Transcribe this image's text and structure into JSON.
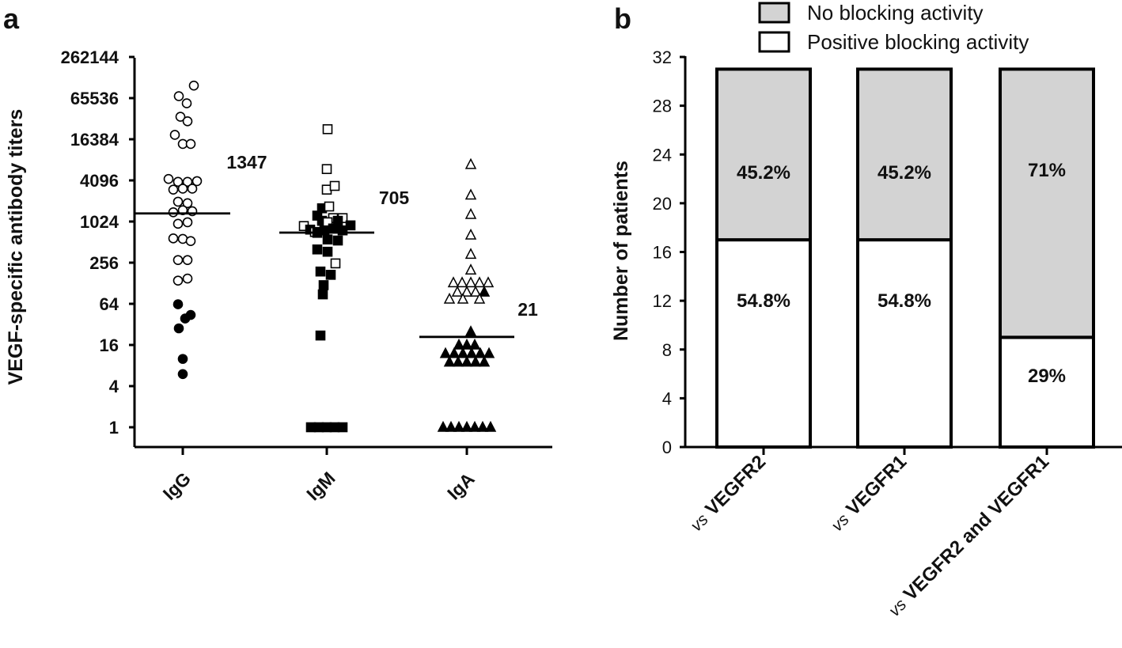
{
  "chart_data": [
    {
      "panel_label": "a",
      "type": "scatter",
      "scale": "log2",
      "ylabel": "VEGF-specific antibody titers",
      "y_ticks": [
        "262144",
        "65536",
        "16384",
        "4096",
        "1024",
        "256",
        "64",
        "16",
        "4",
        "1"
      ],
      "y_tick_values": [
        262144,
        65536,
        16384,
        4096,
        1024,
        256,
        64,
        16,
        4,
        1
      ],
      "ylim": [
        1,
        262144
      ],
      "categories": [
        "IgG",
        "IgM",
        "IgA"
      ],
      "series": [
        {
          "name": "IgG",
          "marker": "circle",
          "median_label": "1347",
          "median": 1347,
          "points": [
            {
              "x": 0.14,
              "y": 100000,
              "filled": false
            },
            {
              "x": -0.05,
              "y": 70000,
              "filled": false
            },
            {
              "x": 0.05,
              "y": 55000,
              "filled": false
            },
            {
              "x": -0.03,
              "y": 35000,
              "filled": false
            },
            {
              "x": 0.06,
              "y": 30000,
              "filled": false
            },
            {
              "x": -0.1,
              "y": 19000,
              "filled": false
            },
            {
              "x": 0.0,
              "y": 14000,
              "filled": false
            },
            {
              "x": 0.1,
              "y": 14000,
              "filled": false
            },
            {
              "x": -0.18,
              "y": 4300,
              "filled": false
            },
            {
              "x": -0.06,
              "y": 3900,
              "filled": false
            },
            {
              "x": 0.06,
              "y": 3900,
              "filled": false
            },
            {
              "x": 0.18,
              "y": 4000,
              "filled": false
            },
            {
              "x": -0.12,
              "y": 3000,
              "filled": false
            },
            {
              "x": 0.0,
              "y": 3100,
              "filled": false
            },
            {
              "x": 0.12,
              "y": 3100,
              "filled": false
            },
            {
              "x": -0.06,
              "y": 2000,
              "filled": false
            },
            {
              "x": 0.06,
              "y": 1900,
              "filled": false
            },
            {
              "x": -0.12,
              "y": 1400,
              "filled": false
            },
            {
              "x": 0.0,
              "y": 1500,
              "filled": false
            },
            {
              "x": 0.12,
              "y": 1450,
              "filled": false
            },
            {
              "x": -0.06,
              "y": 950,
              "filled": false
            },
            {
              "x": 0.06,
              "y": 1000,
              "filled": false
            },
            {
              "x": -0.12,
              "y": 580,
              "filled": false
            },
            {
              "x": 0.0,
              "y": 570,
              "filled": false
            },
            {
              "x": 0.1,
              "y": 530,
              "filled": false
            },
            {
              "x": -0.06,
              "y": 280,
              "filled": false
            },
            {
              "x": 0.06,
              "y": 280,
              "filled": false
            },
            {
              "x": -0.06,
              "y": 140,
              "filled": false
            },
            {
              "x": 0.06,
              "y": 150,
              "filled": false
            },
            {
              "x": -0.06,
              "y": 63,
              "filled": true
            },
            {
              "x": 0.1,
              "y": 44,
              "filled": true
            },
            {
              "x": 0.03,
              "y": 39,
              "filled": true
            },
            {
              "x": -0.05,
              "y": 28,
              "filled": true
            },
            {
              "x": 0.0,
              "y": 10,
              "filled": true
            },
            {
              "x": 0.0,
              "y": 6,
              "filled": true
            }
          ]
        },
        {
          "name": "IgM",
          "marker": "square",
          "median_label": "705",
          "median": 705,
          "points": [
            {
              "x": 0.01,
              "y": 23000,
              "filled": false
            },
            {
              "x": 0.0,
              "y": 6000,
              "filled": false
            },
            {
              "x": 0.0,
              "y": 3000,
              "filled": false
            },
            {
              "x": 0.1,
              "y": 3400,
              "filled": false
            },
            {
              "x": -0.06,
              "y": 1600,
              "filled": true
            },
            {
              "x": 0.03,
              "y": 1700,
              "filled": false
            },
            {
              "x": -0.12,
              "y": 1250,
              "filled": true
            },
            {
              "x": 0.08,
              "y": 1150,
              "filled": false
            },
            {
              "x": 0.2,
              "y": 1150,
              "filled": false
            },
            {
              "x": -0.06,
              "y": 1050,
              "filled": true
            },
            {
              "x": 0.01,
              "y": 1000,
              "filled": false
            },
            {
              "x": 0.14,
              "y": 1050,
              "filled": true
            },
            {
              "x": -0.29,
              "y": 880,
              "filled": false
            },
            {
              "x": -0.21,
              "y": 780,
              "filled": true
            },
            {
              "x": -0.15,
              "y": 720,
              "filled": false
            },
            {
              "x": -0.12,
              "y": 700,
              "filled": true
            },
            {
              "x": -0.03,
              "y": 760,
              "filled": true
            },
            {
              "x": 0.08,
              "y": 810,
              "filled": true
            },
            {
              "x": 0.2,
              "y": 760,
              "filled": true
            },
            {
              "x": 0.3,
              "y": 900,
              "filled": true
            },
            {
              "x": 0.01,
              "y": 560,
              "filled": true
            },
            {
              "x": 0.14,
              "y": 540,
              "filled": true
            },
            {
              "x": -0.12,
              "y": 400,
              "filled": true
            },
            {
              "x": 0.01,
              "y": 370,
              "filled": true
            },
            {
              "x": 0.11,
              "y": 250,
              "filled": false
            },
            {
              "x": -0.08,
              "y": 190,
              "filled": true
            },
            {
              "x": 0.05,
              "y": 170,
              "filled": true
            },
            {
              "x": -0.04,
              "y": 120,
              "filled": true
            },
            {
              "x": -0.05,
              "y": 88,
              "filled": true
            },
            {
              "x": -0.08,
              "y": 22,
              "filled": true
            },
            {
              "x": -0.2,
              "y": 1,
              "filled": true
            },
            {
              "x": -0.1,
              "y": 1,
              "filled": true
            },
            {
              "x": 0.0,
              "y": 1,
              "filled": true
            },
            {
              "x": 0.1,
              "y": 1,
              "filled": true
            },
            {
              "x": 0.2,
              "y": 1,
              "filled": true
            }
          ]
        },
        {
          "name": "IgA",
          "marker": "triangle",
          "median_label": "21",
          "median": 21,
          "points": [
            {
              "x": 0.05,
              "y": 7000,
              "filled": false
            },
            {
              "x": 0.05,
              "y": 2500,
              "filled": false
            },
            {
              "x": 0.05,
              "y": 1300,
              "filled": false
            },
            {
              "x": 0.05,
              "y": 650,
              "filled": false
            },
            {
              "x": 0.05,
              "y": 340,
              "filled": false
            },
            {
              "x": 0.05,
              "y": 200,
              "filled": false
            },
            {
              "x": -0.17,
              "y": 130,
              "filled": false
            },
            {
              "x": -0.06,
              "y": 130,
              "filled": false
            },
            {
              "x": 0.05,
              "y": 130,
              "filled": false
            },
            {
              "x": 0.16,
              "y": 130,
              "filled": false
            },
            {
              "x": 0.27,
              "y": 130,
              "filled": false
            },
            {
              "x": -0.12,
              "y": 95,
              "filled": false
            },
            {
              "x": 0.0,
              "y": 95,
              "filled": false
            },
            {
              "x": 0.11,
              "y": 95,
              "filled": false
            },
            {
              "x": 0.22,
              "y": 95,
              "filled": true
            },
            {
              "x": -0.22,
              "y": 75,
              "filled": false
            },
            {
              "x": -0.05,
              "y": 75,
              "filled": false
            },
            {
              "x": 0.16,
              "y": 75,
              "filled": false
            },
            {
              "x": 0.05,
              "y": 25,
              "filled": true
            },
            {
              "x": -0.1,
              "y": 16,
              "filled": true
            },
            {
              "x": 0.0,
              "y": 16,
              "filled": true
            },
            {
              "x": 0.1,
              "y": 16,
              "filled": true
            },
            {
              "x": -0.27,
              "y": 12,
              "filled": true
            },
            {
              "x": -0.16,
              "y": 12,
              "filled": true
            },
            {
              "x": -0.05,
              "y": 12,
              "filled": true
            },
            {
              "x": 0.06,
              "y": 12,
              "filled": true
            },
            {
              "x": 0.17,
              "y": 12,
              "filled": true
            },
            {
              "x": 0.28,
              "y": 12,
              "filled": true
            },
            {
              "x": -0.22,
              "y": 9,
              "filled": true
            },
            {
              "x": -0.11,
              "y": 9,
              "filled": true
            },
            {
              "x": 0.0,
              "y": 9,
              "filled": true
            },
            {
              "x": 0.11,
              "y": 9,
              "filled": true
            },
            {
              "x": 0.22,
              "y": 9,
              "filled": true
            },
            {
              "x": -0.3,
              "y": 1,
              "filled": true
            },
            {
              "x": -0.2,
              "y": 1,
              "filled": true
            },
            {
              "x": -0.1,
              "y": 1,
              "filled": true
            },
            {
              "x": 0.0,
              "y": 1,
              "filled": true
            },
            {
              "x": 0.1,
              "y": 1,
              "filled": true
            },
            {
              "x": 0.2,
              "y": 1,
              "filled": true
            },
            {
              "x": 0.3,
              "y": 1,
              "filled": true
            }
          ]
        }
      ]
    },
    {
      "panel_label": "b",
      "type": "bar",
      "stacked": true,
      "ylabel": "Number of patients",
      "ylim": [
        0,
        32
      ],
      "y_ticks": [
        0,
        4,
        8,
        12,
        16,
        20,
        24,
        28,
        32
      ],
      "legend_position": "top",
      "legend": [
        {
          "label": "No blocking activity",
          "color": "#d3d3d3"
        },
        {
          "label": "Positive blocking activity",
          "color": "#ffffff"
        }
      ],
      "categories": [
        {
          "prefix": "vs",
          "label": "VEGFR2"
        },
        {
          "prefix": "vs",
          "label": "VEGFR1"
        },
        {
          "prefix": "vs",
          "label": "VEGFR2 and VEGFR1"
        }
      ],
      "series": [
        {
          "name": "Positive blocking activity",
          "values": [
            17,
            17,
            9
          ],
          "labels": [
            "54.8%",
            "54.8%",
            "29%"
          ],
          "color": "#ffffff"
        },
        {
          "name": "No blocking activity",
          "values": [
            14,
            14,
            22
          ],
          "labels": [
            "45.2%",
            "45.2%",
            "71%"
          ],
          "color": "#d3d3d3"
        }
      ]
    }
  ]
}
